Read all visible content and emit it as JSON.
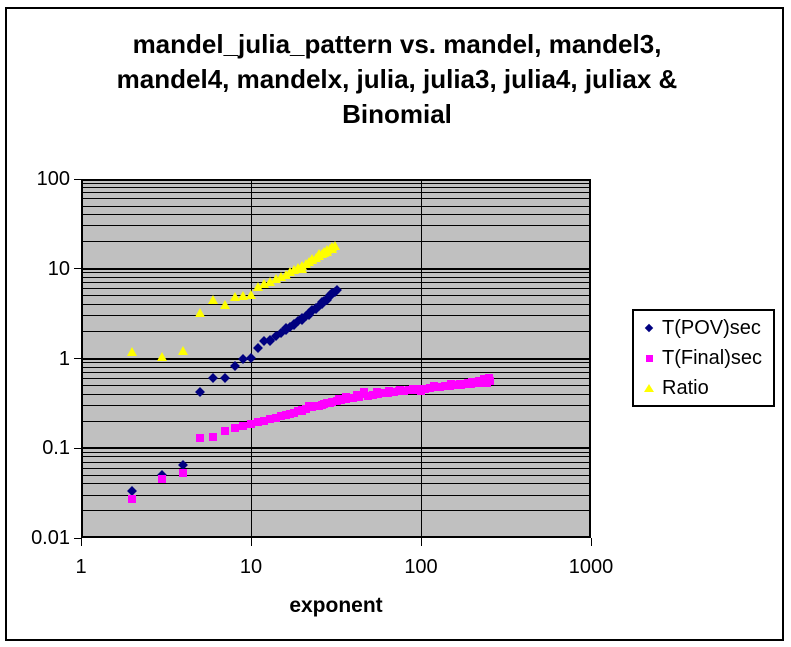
{
  "chart": {
    "background": "#FFFFFF",
    "border_color": "#000000"
  },
  "chart_data": {
    "type": "scatter",
    "title": "mandel_julia_pattern vs. mandel, mandel3, mandel4, mandelx, julia, julia3, julia4, juliax & Binomial",
    "title_lines": [
      "mandel_julia_pattern vs. mandel, mandel3,",
      "mandel4, mandelx, julia, julia3, julia4, juliax &",
      "Binomial"
    ],
    "xlabel": "exponent",
    "ylabel": "",
    "x_scale": "log",
    "y_scale": "log",
    "xlim": [
      1,
      1000
    ],
    "ylim": [
      0.01,
      100
    ],
    "grid": "log-minor-horizontal",
    "plot_bg_color": "#C0C0C0",
    "gridline_color": "#000000",
    "x_ticks": [
      {
        "v": 1,
        "label": "1"
      },
      {
        "v": 10,
        "label": "10"
      },
      {
        "v": 100,
        "label": "100"
      },
      {
        "v": 1000,
        "label": "1000"
      }
    ],
    "y_ticks": [
      {
        "v": 100,
        "label": "100"
      },
      {
        "v": 10,
        "label": "10"
      },
      {
        "v": 1,
        "label": "1"
      },
      {
        "v": 0.1,
        "label": "0.1"
      },
      {
        "v": 0.01,
        "label": "0.01"
      }
    ],
    "legend": {
      "position": "right"
    },
    "series": [
      {
        "name": "T(POV)sec",
        "marker": "diamond",
        "color": "#000080",
        "points": [
          [
            2,
            0.033
          ],
          [
            3,
            0.05
          ],
          [
            4,
            0.065
          ],
          [
            5,
            0.42
          ],
          [
            6,
            0.61
          ],
          [
            7,
            0.6
          ],
          [
            8,
            0.82
          ],
          [
            9,
            0.99
          ],
          [
            10,
            1.02
          ],
          [
            11,
            1.3
          ],
          [
            12,
            1.58
          ],
          [
            13,
            1.62
          ],
          [
            13,
            1.55
          ],
          [
            14,
            1.76
          ],
          [
            15,
            1.92
          ],
          [
            16,
            2.1
          ],
          [
            16,
            2.2
          ],
          [
            17,
            2.25
          ],
          [
            18,
            2.4
          ],
          [
            18,
            2.35
          ],
          [
            19,
            2.6
          ],
          [
            20,
            2.8
          ],
          [
            20,
            2.7
          ],
          [
            21,
            3.0
          ],
          [
            22,
            3.2
          ],
          [
            22,
            3.05
          ],
          [
            23,
            3.4
          ],
          [
            23,
            3.5
          ],
          [
            24,
            3.6
          ],
          [
            24,
            3.7
          ],
          [
            25,
            3.85
          ],
          [
            26,
            4.1
          ],
          [
            26,
            4.25
          ],
          [
            27,
            4.35
          ],
          [
            28,
            4.65
          ],
          [
            28,
            4.5
          ],
          [
            29,
            4.95
          ],
          [
            29,
            5.1
          ],
          [
            30,
            5.25
          ],
          [
            30,
            5.4
          ],
          [
            31,
            5.5
          ],
          [
            32,
            5.8
          ]
        ]
      },
      {
        "name": "T(Final)sec",
        "marker": "square",
        "color": "#FF00FF",
        "points": [
          [
            2,
            0.027
          ],
          [
            3,
            0.046
          ],
          [
            4,
            0.053
          ],
          [
            5,
            0.131
          ],
          [
            6,
            0.134
          ],
          [
            7,
            0.155
          ],
          [
            8,
            0.168
          ],
          [
            9,
            0.178
          ],
          [
            10,
            0.186
          ],
          [
            11,
            0.195
          ],
          [
            12,
            0.203
          ],
          [
            13,
            0.212
          ],
          [
            14,
            0.22
          ],
          [
            15,
            0.228
          ],
          [
            16,
            0.236
          ],
          [
            17,
            0.243
          ],
          [
            18,
            0.25
          ],
          [
            19,
            0.258
          ],
          [
            20,
            0.265
          ],
          [
            20,
            0.26
          ],
          [
            21,
            0.272
          ],
          [
            22,
            0.295
          ],
          [
            23,
            0.285
          ],
          [
            24,
            0.292
          ],
          [
            25,
            0.299
          ],
          [
            26,
            0.305
          ],
          [
            27,
            0.311
          ],
          [
            28,
            0.317
          ],
          [
            29,
            0.323
          ],
          [
            30,
            0.329
          ],
          [
            32,
            0.336
          ],
          [
            33,
            0.355
          ],
          [
            34,
            0.344
          ],
          [
            36,
            0.352
          ],
          [
            36,
            0.37
          ],
          [
            38,
            0.359
          ],
          [
            40,
            0.366
          ],
          [
            42,
            0.39
          ],
          [
            43,
            0.375
          ],
          [
            46,
            0.42
          ],
          [
            46,
            0.4
          ],
          [
            49,
            0.384
          ],
          [
            52,
            0.392
          ],
          [
            55,
            0.42
          ],
          [
            56,
            0.4
          ],
          [
            60,
            0.408
          ],
          [
            64,
            0.415
          ],
          [
            65,
            0.43
          ],
          [
            69,
            0.422
          ],
          [
            74,
            0.429
          ],
          [
            75,
            0.45
          ],
          [
            79,
            0.436
          ],
          [
            85,
            0.443
          ],
          [
            90,
            0.46
          ],
          [
            91,
            0.45
          ],
          [
            98,
            0.457
          ],
          [
            100,
            0.44
          ],
          [
            105,
            0.463
          ],
          [
            113,
            0.47
          ],
          [
            120,
            0.49
          ],
          [
            121,
            0.476
          ],
          [
            130,
            0.483
          ],
          [
            139,
            0.489
          ],
          [
            149,
            0.495
          ],
          [
            150,
            0.52
          ],
          [
            160,
            0.502
          ],
          [
            170,
            0.52
          ],
          [
            172,
            0.508
          ],
          [
            184,
            0.514
          ],
          [
            190,
            0.53
          ],
          [
            198,
            0.521
          ],
          [
            200,
            0.55
          ],
          [
            210,
            0.54
          ],
          [
            212,
            0.527
          ],
          [
            220,
            0.56
          ],
          [
            227,
            0.534
          ],
          [
            235,
            0.585
          ],
          [
            240,
            0.55
          ],
          [
            244,
            0.54
          ],
          [
            248,
            0.57
          ],
          [
            252,
            0.6
          ],
          [
            255,
            0.565
          ]
        ]
      },
      {
        "name": "Ratio",
        "marker": "triangle",
        "color": "#FFFF00",
        "points": [
          [
            2,
            1.18
          ],
          [
            3,
            1.05
          ],
          [
            4,
            1.22
          ],
          [
            5,
            3.2
          ],
          [
            6,
            4.5
          ],
          [
            7,
            3.9
          ],
          [
            8,
            4.9
          ],
          [
            9,
            5.0
          ],
          [
            10,
            5.1
          ],
          [
            11,
            6.3
          ],
          [
            12,
            6.8
          ],
          [
            13,
            7.2
          ],
          [
            14,
            7.6
          ],
          [
            15,
            8.1
          ],
          [
            16,
            8.6
          ],
          [
            17,
            9.1
          ],
          [
            18,
            9.6
          ],
          [
            19,
            10.1
          ],
          [
            20,
            10.6
          ],
          [
            20,
            9.9
          ],
          [
            21,
            11.2
          ],
          [
            22,
            11.8
          ],
          [
            23,
            12.4
          ],
          [
            23,
            13.0
          ],
          [
            24,
            13.1
          ],
          [
            25,
            13.8
          ],
          [
            25,
            14.6
          ],
          [
            26,
            14.5
          ],
          [
            27,
            15.2
          ],
          [
            27,
            14.8
          ],
          [
            28,
            16.0
          ],
          [
            28,
            15.5
          ],
          [
            29,
            16.8
          ],
          [
            30,
            17.4
          ],
          [
            30,
            16.5
          ],
          [
            31,
            18.0
          ]
        ]
      }
    ]
  }
}
